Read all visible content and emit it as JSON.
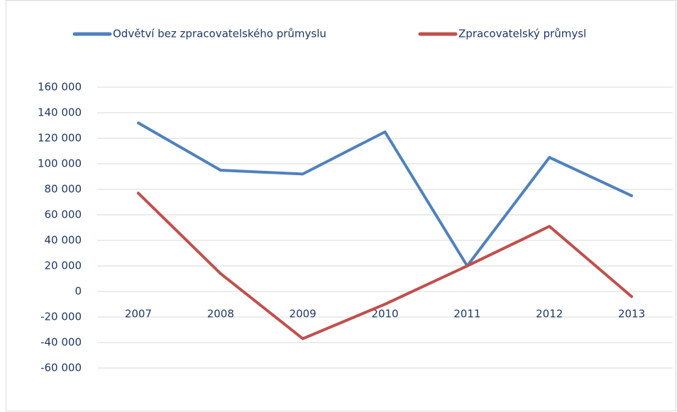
{
  "chart_data": {
    "type": "line",
    "categories": [
      "2007",
      "2008",
      "2009",
      "2010",
      "2011",
      "2012",
      "2013"
    ],
    "series": [
      {
        "name": "Odvětví bez zpracovatelského průmyslu",
        "color": "#4f81bd",
        "values": [
          132000,
          95000,
          92000,
          125000,
          20000,
          105000,
          75000
        ]
      },
      {
        "name": "Zpracovatelský průmysl",
        "color": "#c0504d",
        "values": [
          77000,
          14000,
          -37000,
          -10000,
          20000,
          51000,
          -4000
        ]
      }
    ],
    "ylim": [
      -60000,
      160000
    ],
    "yticks": [
      {
        "value": -60000,
        "label": "-60 000"
      },
      {
        "value": -40000,
        "label": "-40 000"
      },
      {
        "value": -20000,
        "label": "-20 000"
      },
      0,
      {
        "value": 20000,
        "label": "20 000"
      },
      {
        "value": 40000,
        "label": "40 000"
      },
      {
        "value": 60000,
        "label": "60 000"
      },
      {
        "value": 80000,
        "label": "80 000"
      },
      {
        "value": 100000,
        "label": "100 000"
      },
      {
        "value": 120000,
        "label": "120 000"
      },
      {
        "value": 140000,
        "label": "140 000"
      },
      {
        "value": 160000,
        "label": "160 000"
      }
    ],
    "grid": true,
    "legend": "top"
  }
}
